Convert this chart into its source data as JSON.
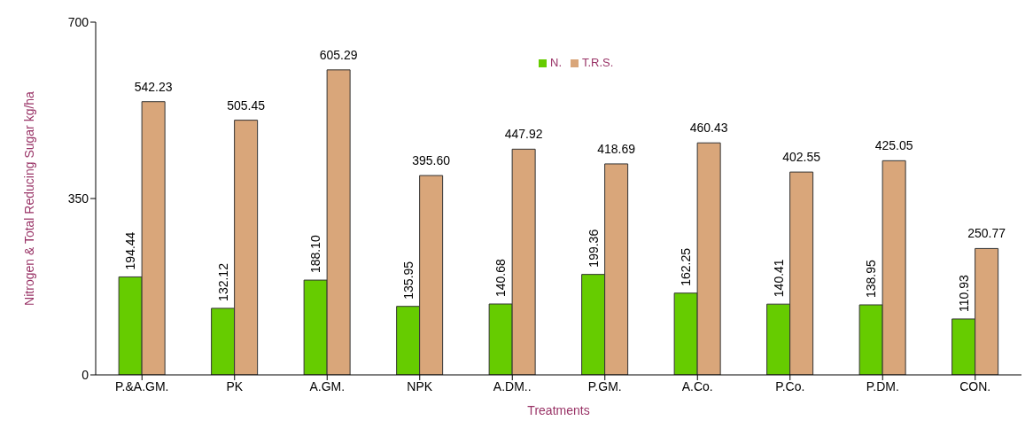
{
  "chart_data": {
    "type": "bar",
    "xlabel": "Treatments",
    "ylabel": "Nitrogen & Total Reducing Sugar kg/ha",
    "categories": [
      "P.&A.GM.",
      "PK",
      "A.GM.",
      "NPK",
      "A.DM..",
      "P.GM.",
      "A.Co.",
      "P.Co.",
      "P.DM.",
      "CON."
    ],
    "series": [
      {
        "name": "N.",
        "color": "#66cc00",
        "values": [
          194.44,
          132.12,
          188.1,
          135.95,
          140.68,
          199.36,
          162.25,
          140.41,
          138.95,
          110.93
        ],
        "value_labels": [
          "194.44",
          "132.12",
          "188.10",
          "135.95",
          "140.68",
          "199.36",
          "162.25",
          "140.41",
          "138.95",
          "110.93"
        ]
      },
      {
        "name": "T.R.S.",
        "color": "#d9a67a",
        "values": [
          542.23,
          505.45,
          605.29,
          395.6,
          447.92,
          418.69,
          460.43,
          402.55,
          425.05,
          250.77
        ],
        "value_labels": [
          "542.23",
          "505.45",
          "605.29",
          "395.60",
          "447.92",
          "418.69",
          "460.43",
          "402.55",
          "425.05",
          "250.77"
        ]
      }
    ],
    "ylim": [
      0,
      700
    ],
    "yticks": [
      0,
      350,
      700
    ],
    "legend": "top"
  }
}
